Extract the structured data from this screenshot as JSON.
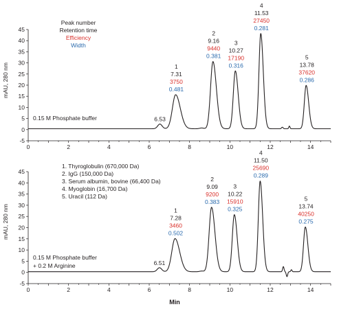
{
  "colors": {
    "black": "#231f20",
    "efficiency": "#d9302b",
    "width": "#2a6aad",
    "axis": "#231f20"
  },
  "chart_data": [
    {
      "type": "line",
      "ylabel": "mAU, 280 nm",
      "xlabel": "",
      "xlim": [
        0,
        15
      ],
      "ylim": [
        -5,
        45
      ],
      "xticks": [
        0,
        2,
        4,
        6,
        8,
        10,
        12,
        14
      ],
      "yticks": [
        -5,
        0,
        5,
        10,
        15,
        20,
        25,
        30,
        35,
        40,
        45
      ],
      "key": {
        "line1": "Peak number",
        "line2": "Retention time",
        "line3": "Efficiency",
        "line4": "Width"
      },
      "condition": [
        "0.15 M Phosphate buffer"
      ],
      "baseline": 0.4,
      "minor_peaks": [
        {
          "rt": 6.53,
          "height": 2.1,
          "sigma": 0.11,
          "label": "6.53"
        },
        {
          "rt": 8.6,
          "height": 0.35,
          "sigma": 0.1
        },
        {
          "rt": 12.6,
          "height": 0.7,
          "sigma": 0.04
        },
        {
          "rt": 12.95,
          "height": 1.2,
          "sigma": 0.03
        }
      ],
      "peaks": [
        {
          "number": "1",
          "rt": 7.31,
          "rt_label": "7.31",
          "height": 15.3,
          "efficiency": "3750",
          "width": "0.481",
          "sigma": 0.16,
          "tail": 0.07
        },
        {
          "number": "2",
          "rt": 9.16,
          "rt_label": "9.16",
          "height": 30.2,
          "efficiency": "9440",
          "width": "0.381",
          "sigma": 0.12,
          "tail": 0.05
        },
        {
          "number": "3",
          "rt": 10.27,
          "rt_label": "10.27",
          "height": 26.0,
          "efficiency": "17190",
          "width": "0.316",
          "sigma": 0.1,
          "tail": 0.04
        },
        {
          "number": "4",
          "rt": 11.53,
          "rt_label": "11.53",
          "height": 42.8,
          "efficiency": "27450",
          "width": "0.281",
          "sigma": 0.09,
          "tail": 0.035
        },
        {
          "number": "5",
          "rt": 13.78,
          "rt_label": "13.78",
          "height": 19.5,
          "efficiency": "37620",
          "width": "0.286",
          "sigma": 0.09,
          "tail": 0.035
        }
      ]
    },
    {
      "type": "line",
      "ylabel": "mAU, 280 nm",
      "xlabel": "Min",
      "xlim": [
        0,
        15
      ],
      "ylim": [
        -5,
        45
      ],
      "xticks": [
        0,
        2,
        4,
        6,
        8,
        10,
        12,
        14
      ],
      "yticks": [
        -5,
        0,
        5,
        10,
        15,
        20,
        25,
        30,
        35,
        40,
        45
      ],
      "legend": [
        "1.  Thyroglobulin (670,000 Da)",
        "2.  IgG (150,000 Da)",
        "3.  Serum albumin, bovine (66,400 Da)",
        "4.  Myoglobin (16,700 Da)",
        "5.  Uracil (112 Da)"
      ],
      "condition": [
        "0.15 M Phosphate buffer",
        "+ 0.2 M Arginine"
      ],
      "baseline": 0.3,
      "minor_peaks": [
        {
          "rt": 6.51,
          "height": 1.8,
          "sigma": 0.11,
          "label": "6.51"
        },
        {
          "rt": 8.6,
          "height": 0.3,
          "sigma": 0.1
        },
        {
          "rt": 12.65,
          "height": 2.3,
          "sigma": 0.035
        },
        {
          "rt": 12.83,
          "height": -2.2,
          "sigma": 0.035
        },
        {
          "rt": 13.05,
          "height": 0.9,
          "sigma": 0.03
        }
      ],
      "peaks": [
        {
          "number": "1",
          "rt": 7.28,
          "rt_label": "7.28",
          "height": 14.8,
          "efficiency": "3460",
          "width": "0.502",
          "sigma": 0.16,
          "tail": 0.07
        },
        {
          "number": "2",
          "rt": 9.09,
          "rt_label": "9.09",
          "height": 28.8,
          "efficiency": "9200",
          "width": "0.383",
          "sigma": 0.12,
          "tail": 0.05
        },
        {
          "number": "3",
          "rt": 10.22,
          "rt_label": "10.22",
          "height": 25.5,
          "efficiency": "15910",
          "width": "0.325",
          "sigma": 0.1,
          "tail": 0.04
        },
        {
          "number": "4",
          "rt": 11.5,
          "rt_label": "11.50",
          "height": 40.5,
          "efficiency": "25690",
          "width": "0.289",
          "sigma": 0.09,
          "tail": 0.035
        },
        {
          "number": "5",
          "rt": 13.74,
          "rt_label": "13.74",
          "height": 20.0,
          "efficiency": "40250",
          "width": "0.275",
          "sigma": 0.09,
          "tail": 0.035
        }
      ]
    }
  ]
}
